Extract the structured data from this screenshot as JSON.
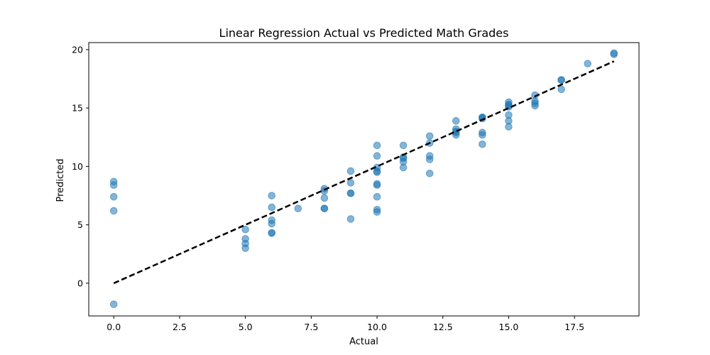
{
  "chart_data": {
    "type": "scatter",
    "title": "Linear Regression Actual vs Predicted Math Grades",
    "xlabel": "Actual",
    "ylabel": "Predicted",
    "xlim": [
      -0.95,
      19.95
    ],
    "ylim": [
      -2.8,
      20.6
    ],
    "xticks": [
      0,
      2.5,
      5,
      7.5,
      10,
      12.5,
      15,
      17.5
    ],
    "xtick_labels": [
      "0.0",
      "2.5",
      "5.0",
      "7.5",
      "10.0",
      "12.5",
      "15.0",
      "17.5"
    ],
    "yticks": [
      0,
      5,
      10,
      15,
      20
    ],
    "ytick_labels": [
      "0",
      "5",
      "10",
      "15",
      "20"
    ],
    "grid": false,
    "legend": "none",
    "point_color": "#1f77b4",
    "point_alpha": 0.55,
    "reference_line": {
      "x": [
        0,
        19
      ],
      "y": [
        0,
        19
      ],
      "color": "#000000",
      "style": "dashed"
    },
    "points": [
      [
        0,
        8.7
      ],
      [
        0,
        8.4
      ],
      [
        0,
        7.4
      ],
      [
        0,
        6.2
      ],
      [
        0,
        -1.8
      ],
      [
        5,
        4.6
      ],
      [
        5,
        3.8
      ],
      [
        5,
        3.4
      ],
      [
        5,
        3.0
      ],
      [
        6,
        7.5
      ],
      [
        6,
        6.5
      ],
      [
        6,
        5.4
      ],
      [
        6,
        5.1
      ],
      [
        6,
        4.3
      ],
      [
        6,
        4.3
      ],
      [
        7,
        6.4
      ],
      [
        8,
        8.1
      ],
      [
        8,
        7.9
      ],
      [
        8,
        7.3
      ],
      [
        8,
        6.4
      ],
      [
        8,
        6.4
      ],
      [
        9,
        9.6
      ],
      [
        9,
        8.6
      ],
      [
        9,
        7.7
      ],
      [
        9,
        7.7
      ],
      [
        9,
        5.5
      ],
      [
        10,
        11.8
      ],
      [
        10,
        10.9
      ],
      [
        10,
        9.9
      ],
      [
        10,
        9.6
      ],
      [
        10,
        9.5
      ],
      [
        10,
        8.5
      ],
      [
        10,
        8.4
      ],
      [
        10,
        7.4
      ],
      [
        10,
        6.3
      ],
      [
        10,
        6.1
      ],
      [
        11,
        11.8
      ],
      [
        11,
        10.8
      ],
      [
        11,
        10.7
      ],
      [
        11,
        10.4
      ],
      [
        11,
        9.9
      ],
      [
        12,
        12.6
      ],
      [
        12,
        12.0
      ],
      [
        12,
        10.9
      ],
      [
        12,
        10.6
      ],
      [
        12,
        9.4
      ],
      [
        13,
        13.9
      ],
      [
        13,
        13.2
      ],
      [
        13,
        13.0
      ],
      [
        13,
        12.9
      ],
      [
        13,
        12.7
      ],
      [
        14,
        14.2
      ],
      [
        14,
        14.2
      ],
      [
        14,
        14.1
      ],
      [
        14,
        12.9
      ],
      [
        14,
        12.7
      ],
      [
        14,
        11.9
      ],
      [
        15,
        15.5
      ],
      [
        15,
        15.3
      ],
      [
        15,
        15.2
      ],
      [
        15,
        15.1
      ],
      [
        15,
        14.4
      ],
      [
        15,
        13.9
      ],
      [
        15,
        13.4
      ],
      [
        16,
        16.1
      ],
      [
        16,
        15.6
      ],
      [
        16,
        15.4
      ],
      [
        16,
        15.2
      ],
      [
        17,
        17.4
      ],
      [
        17,
        17.4
      ],
      [
        17,
        16.6
      ],
      [
        18,
        18.8
      ],
      [
        19,
        19.7
      ],
      [
        19,
        19.6
      ]
    ]
  }
}
